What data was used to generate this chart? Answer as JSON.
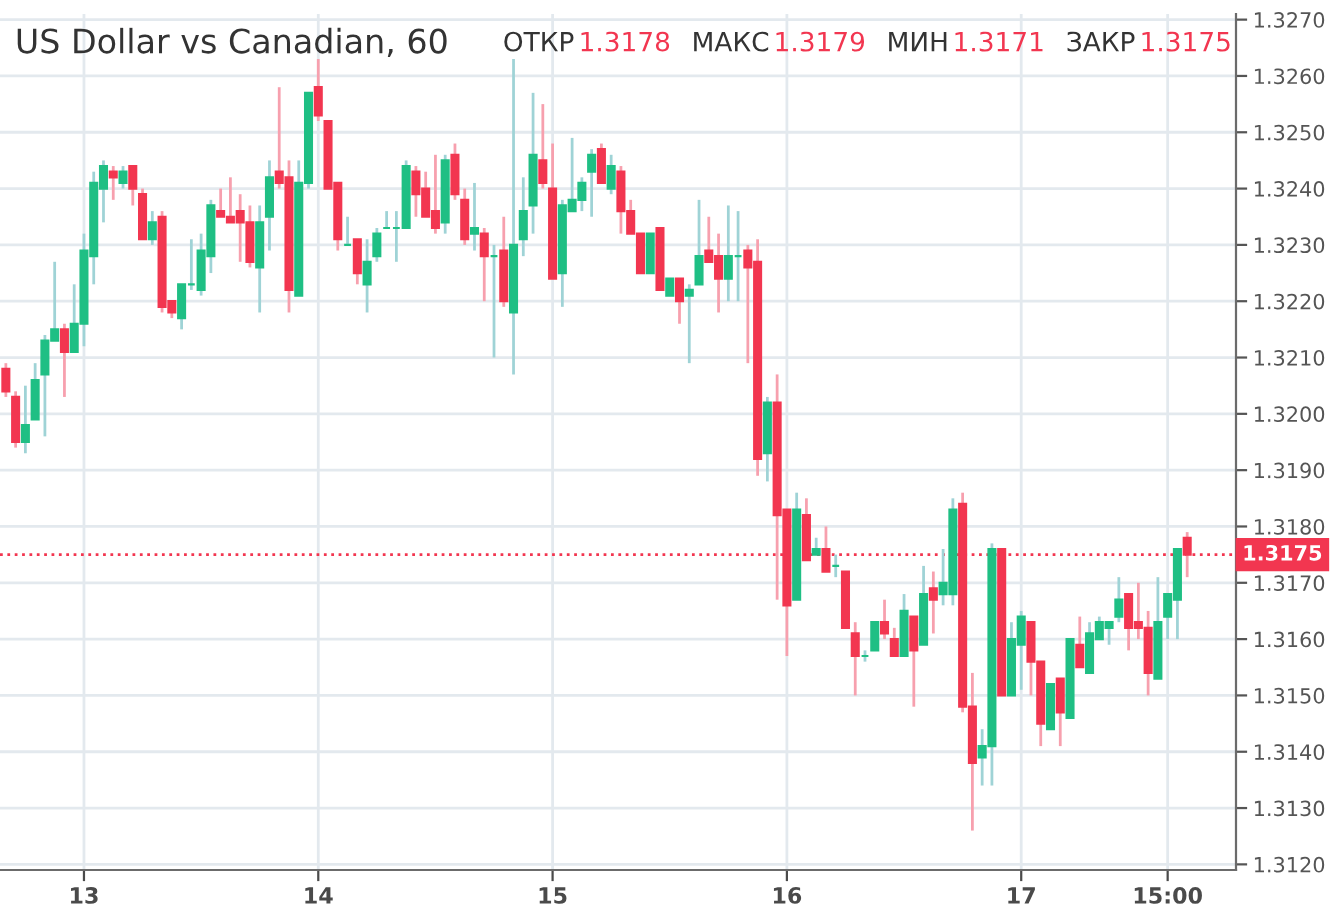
{
  "chart_data": {
    "type": "candlestick",
    "title": "US Dollar vs Canadian, 60",
    "annotations": [
      "ОТКР",
      "1.3178",
      "МАКС",
      "1.3179",
      "МИН",
      "1.3171",
      "ЗАКР",
      "1.3175"
    ],
    "categories": [
      null,
      null,
      null,
      null,
      null,
      null,
      null,
      null,
      "13",
      null,
      null,
      null,
      null,
      null,
      null,
      null,
      null,
      null,
      null,
      null,
      null,
      null,
      null,
      null,
      null,
      null,
      null,
      null,
      null,
      null,
      null,
      null,
      "14",
      null,
      null,
      null,
      null,
      null,
      null,
      null,
      null,
      null,
      null,
      null,
      null,
      null,
      null,
      null,
      null,
      null,
      null,
      null,
      null,
      null,
      null,
      null,
      "15",
      null,
      null,
      null,
      null,
      null,
      null,
      null,
      null,
      null,
      null,
      null,
      null,
      null,
      null,
      null,
      null,
      null,
      null,
      null,
      null,
      null,
      null,
      null,
      "16",
      null,
      null,
      null,
      null,
      null,
      null,
      null,
      null,
      null,
      null,
      null,
      null,
      null,
      null,
      null,
      null,
      null,
      null,
      null,
      null,
      null,
      null,
      null,
      "17",
      null,
      null,
      null,
      null,
      null,
      null,
      null,
      null,
      null,
      null,
      null,
      null,
      null,
      null,
      "15:00",
      null,
      null
    ],
    "ohlc": [
      [
        1.3208,
        1.3209,
        1.3203,
        1.3204
      ],
      [
        1.3203,
        1.3204,
        1.3194,
        1.3195
      ],
      [
        1.3195,
        1.3205,
        1.3193,
        1.3198
      ],
      [
        1.3199,
        1.3209,
        1.3199,
        1.3206
      ],
      [
        1.3207,
        1.3214,
        1.3196,
        1.3213
      ],
      [
        1.3213,
        1.3227,
        1.3213,
        1.3215
      ],
      [
        1.3215,
        1.3216,
        1.3203,
        1.3211
      ],
      [
        1.3211,
        1.3223,
        1.3211,
        1.3216
      ],
      [
        1.3216,
        1.3232,
        1.3212,
        1.3229
      ],
      [
        1.3228,
        1.3243,
        1.3223,
        1.3241
      ],
      [
        1.324,
        1.3245,
        1.3234,
        1.3244
      ],
      [
        1.3243,
        1.3244,
        1.3238,
        1.3242
      ],
      [
        1.3241,
        1.3244,
        1.324,
        1.3243
      ],
      [
        1.3244,
        1.3244,
        1.3237,
        1.324
      ],
      [
        1.3239,
        1.324,
        1.3231,
        1.3231
      ],
      [
        1.3231,
        1.3236,
        1.323,
        1.3234
      ],
      [
        1.3235,
        1.3236,
        1.3218,
        1.3219
      ],
      [
        1.322,
        1.322,
        1.3217,
        1.3218
      ],
      [
        1.3217,
        1.3223,
        1.3215,
        1.3223
      ],
      [
        1.3223,
        1.3231,
        1.3222,
        1.3223
      ],
      [
        1.3222,
        1.3232,
        1.3221,
        1.3229
      ],
      [
        1.3228,
        1.3238,
        1.3225,
        1.3237
      ],
      [
        1.3236,
        1.324,
        1.3235,
        1.3235
      ],
      [
        1.3235,
        1.3242,
        1.3234,
        1.3234
      ],
      [
        1.3236,
        1.3239,
        1.3227,
        1.3234
      ],
      [
        1.3234,
        1.3237,
        1.3226,
        1.3227
      ],
      [
        1.3226,
        1.3237,
        1.3218,
        1.3234
      ],
      [
        1.3235,
        1.3245,
        1.3229,
        1.3242
      ],
      [
        1.3243,
        1.3258,
        1.324,
        1.3241
      ],
      [
        1.3242,
        1.3245,
        1.3218,
        1.3222
      ],
      [
        1.3221,
        1.3245,
        1.3221,
        1.3241
      ],
      [
        1.3241,
        1.3257,
        1.324,
        1.3257
      ],
      [
        1.3258,
        1.3263,
        1.3252,
        1.3253
      ],
      [
        1.3252,
        1.3252,
        1.324,
        1.324
      ],
      [
        1.3241,
        1.3241,
        1.3229,
        1.3231
      ],
      [
        1.323,
        1.3235,
        1.323,
        1.323
      ],
      [
        1.3231,
        1.3231,
        1.3223,
        1.3225
      ],
      [
        1.3223,
        1.3231,
        1.3218,
        1.3227
      ],
      [
        1.3228,
        1.3233,
        1.3227,
        1.3232
      ],
      [
        1.3233,
        1.3236,
        1.3233,
        1.3233
      ],
      [
        1.3233,
        1.3236,
        1.3227,
        1.3233
      ],
      [
        1.3233,
        1.3245,
        1.3233,
        1.3244
      ],
      [
        1.3243,
        1.3244,
        1.3235,
        1.3239
      ],
      [
        1.324,
        1.3243,
        1.3235,
        1.3235
      ],
      [
        1.3236,
        1.3246,
        1.3232,
        1.3233
      ],
      [
        1.3234,
        1.3246,
        1.3232,
        1.3245
      ],
      [
        1.3246,
        1.3248,
        1.3238,
        1.3239
      ],
      [
        1.3238,
        1.324,
        1.323,
        1.3231
      ],
      [
        1.3232,
        1.3241,
        1.3229,
        1.3233
      ],
      [
        1.3232,
        1.3233,
        1.322,
        1.3228
      ],
      [
        1.3228,
        1.323,
        1.321,
        1.3228
      ],
      [
        1.3229,
        1.3235,
        1.3219,
        1.322
      ],
      [
        1.3218,
        1.3263,
        1.3207,
        1.323
      ],
      [
        1.3231,
        1.3242,
        1.3228,
        1.3236
      ],
      [
        1.3237,
        1.3257,
        1.3232,
        1.3246
      ],
      [
        1.3245,
        1.3255,
        1.324,
        1.3241
      ],
      [
        1.324,
        1.3248,
        1.3224,
        1.3224
      ],
      [
        1.3225,
        1.3238,
        1.3219,
        1.3237
      ],
      [
        1.3236,
        1.3249,
        1.3236,
        1.3238
      ],
      [
        1.3238,
        1.3242,
        1.3236,
        1.3241
      ],
      [
        1.3243,
        1.3247,
        1.3235,
        1.3246
      ],
      [
        1.3247,
        1.3248,
        1.3241,
        1.3241
      ],
      [
        1.324,
        1.3246,
        1.3239,
        1.3244
      ],
      [
        1.3243,
        1.3244,
        1.3232,
        1.3236
      ],
      [
        1.3236,
        1.3238,
        1.3232,
        1.3232
      ],
      [
        1.3232,
        1.3232,
        1.3225,
        1.3225
      ],
      [
        1.3225,
        1.3232,
        1.3225,
        1.3232
      ],
      [
        1.3233,
        1.3233,
        1.3222,
        1.3222
      ],
      [
        1.3221,
        1.3224,
        1.3221,
        1.3224
      ],
      [
        1.3224,
        1.3224,
        1.3216,
        1.322
      ],
      [
        1.3221,
        1.3223,
        1.3209,
        1.3222
      ],
      [
        1.3223,
        1.3238,
        1.3223,
        1.3228
      ],
      [
        1.3229,
        1.3235,
        1.3227,
        1.3227
      ],
      [
        1.3228,
        1.3232,
        1.3218,
        1.3224
      ],
      [
        1.3224,
        1.3237,
        1.322,
        1.3228
      ],
      [
        1.3228,
        1.3236,
        1.322,
        1.3228
      ],
      [
        1.3229,
        1.323,
        1.3209,
        1.3226
      ],
      [
        1.3227,
        1.3231,
        1.3189,
        1.3192
      ],
      [
        1.3193,
        1.3203,
        1.3188,
        1.3202
      ],
      [
        1.3202,
        1.3207,
        1.3167,
        1.3182
      ],
      [
        1.3183,
        1.3183,
        1.3157,
        1.3166
      ],
      [
        1.3167,
        1.3186,
        1.3167,
        1.3183
      ],
      [
        1.3182,
        1.3185,
        1.3174,
        1.3174
      ],
      [
        1.3175,
        1.3178,
        1.3175,
        1.3176
      ],
      [
        1.3176,
        1.318,
        1.3172,
        1.3172
      ],
      [
        1.3173,
        1.3175,
        1.3171,
        1.3173
      ],
      [
        1.3172,
        1.3172,
        1.3162,
        1.3162
      ],
      [
        1.3161,
        1.3163,
        1.315,
        1.3157
      ],
      [
        1.3157,
        1.3158,
        1.3156,
        1.3157
      ],
      [
        1.3158,
        1.3163,
        1.3158,
        1.3163
      ],
      [
        1.3163,
        1.3167,
        1.316,
        1.3161
      ],
      [
        1.316,
        1.3162,
        1.3157,
        1.3157
      ],
      [
        1.3157,
        1.3168,
        1.3157,
        1.3165
      ],
      [
        1.3164,
        1.3164,
        1.3148,
        1.3158
      ],
      [
        1.3159,
        1.3173,
        1.3159,
        1.3168
      ],
      [
        1.3169,
        1.3172,
        1.3161,
        1.3167
      ],
      [
        1.3168,
        1.3176,
        1.3166,
        1.317
      ],
      [
        1.3168,
        1.3185,
        1.3166,
        1.3183
      ],
      [
        1.3184,
        1.3186,
        1.3147,
        1.3148
      ],
      [
        1.3148,
        1.3154,
        1.3126,
        1.3138
      ],
      [
        1.3139,
        1.3144,
        1.3134,
        1.3141
      ],
      [
        1.3141,
        1.3177,
        1.3134,
        1.3176
      ],
      [
        1.3176,
        1.3176,
        1.315,
        1.315
      ],
      [
        1.315,
        1.3163,
        1.315,
        1.316
      ],
      [
        1.3159,
        1.3165,
        1.3151,
        1.3164
      ],
      [
        1.3163,
        1.3163,
        1.315,
        1.3156
      ],
      [
        1.3156,
        1.3156,
        1.3141,
        1.3145
      ],
      [
        1.3144,
        1.3152,
        1.3144,
        1.3152
      ],
      [
        1.3153,
        1.3153,
        1.3141,
        1.3147
      ],
      [
        1.3146,
        1.316,
        1.3146,
        1.316
      ],
      [
        1.3159,
        1.3164,
        1.3155,
        1.3155
      ],
      [
        1.3154,
        1.3163,
        1.3154,
        1.3161
      ],
      [
        1.316,
        1.3164,
        1.316,
        1.3163
      ],
      [
        1.3162,
        1.3163,
        1.3159,
        1.3163
      ],
      [
        1.3164,
        1.3171,
        1.3163,
        1.3167
      ],
      [
        1.3168,
        1.3168,
        1.3158,
        1.3162
      ],
      [
        1.3163,
        1.317,
        1.316,
        1.3162
      ],
      [
        1.3162,
        1.3165,
        1.315,
        1.3154
      ],
      [
        1.3153,
        1.3171,
        1.3153,
        1.3163
      ],
      [
        1.3164,
        1.3168,
        1.316,
        1.3168
      ],
      [
        1.3167,
        1.3176,
        1.316,
        1.3176
      ],
      [
        1.3178,
        1.3179,
        1.3171,
        1.3175
      ]
    ],
    "ylim": [
      1.3119,
      1.3271
    ],
    "yticks": [
      {
        "value": 1.312,
        "label": "1.3120"
      },
      {
        "value": 1.313,
        "label": "1.3130"
      },
      {
        "value": 1.314,
        "label": "1.3140"
      },
      {
        "value": 1.315,
        "label": "1.3150"
      },
      {
        "value": 1.316,
        "label": "1.3160"
      },
      {
        "value": 1.317,
        "label": "1.3170"
      },
      {
        "value": 1.318,
        "label": "1.3180"
      },
      {
        "value": 1.319,
        "label": "1.3190"
      },
      {
        "value": 1.32,
        "label": "1.3200"
      },
      {
        "value": 1.321,
        "label": "1.3210"
      },
      {
        "value": 1.322,
        "label": "1.3220"
      },
      {
        "value": 1.323,
        "label": "1.3230"
      },
      {
        "value": 1.324,
        "label": "1.3240"
      },
      {
        "value": 1.325,
        "label": "1.3250"
      },
      {
        "value": 1.326,
        "label": "1.3260"
      },
      {
        "value": 1.327,
        "label": "1.3270"
      }
    ],
    "ref_lines": [
      {
        "axis": "y",
        "value": 1.3175,
        "label": "1.3175",
        "color": "#f23650",
        "line_style": "dotted"
      }
    ],
    "grid": true
  }
}
